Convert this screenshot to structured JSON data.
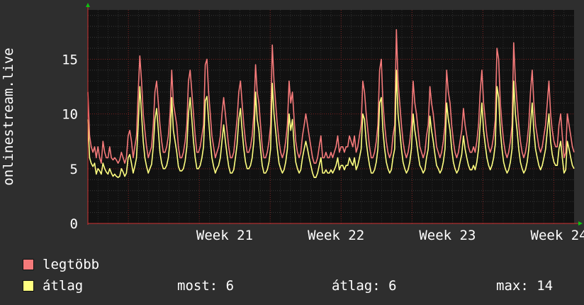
{
  "chart_data": {
    "type": "line",
    "ylabel": "onlinestream.live",
    "yticks": [
      0,
      5,
      10,
      15
    ],
    "ylim": [
      0,
      19.5
    ],
    "x_tick_labels": [
      "Week 21",
      "Week 22",
      "Week 23",
      "Week 24"
    ],
    "x_tick_days": [
      13.5,
      24.5,
      35.5,
      46.5
    ],
    "xlim_days": [
      0,
      48
    ],
    "grid": true,
    "colors": {
      "background": "#2e2e2e",
      "plot_bg": "#111111",
      "max": "#f57a7a",
      "avg": "#ffff80",
      "axis": "#d03030",
      "arrow": "#10c010"
    },
    "series": [
      {
        "name": "legtöbb",
        "color": "#f57a7a",
        "values": [
          12,
          8,
          7,
          6.5,
          7,
          6,
          7,
          6,
          5.5,
          7.5,
          6.5,
          6,
          6,
          7,
          6,
          5.8,
          6,
          5.8,
          5.5,
          5.8,
          6.5,
          6,
          5.5,
          6,
          8,
          8.5,
          7.5,
          6,
          7,
          8,
          12,
          15.3,
          13,
          10,
          8.5,
          7,
          6,
          6.5,
          7,
          9,
          12,
          13,
          11,
          9,
          7.5,
          6.5,
          6.5,
          7,
          8,
          10,
          14,
          11,
          10,
          9,
          7,
          6,
          6,
          6.5,
          7.5,
          9,
          13,
          14,
          12,
          10,
          8,
          6.5,
          6.5,
          7,
          8,
          9,
          14.5,
          15,
          12,
          10,
          8,
          7,
          6,
          6.5,
          7,
          8,
          10,
          11.5,
          10,
          8.5,
          7,
          6,
          6,
          6.5,
          8,
          9.5,
          12,
          13,
          11,
          9,
          7.5,
          6.5,
          6.5,
          7,
          8,
          10,
          14.5,
          12,
          11,
          9,
          7,
          6,
          6,
          6.5,
          7.5,
          9,
          16.3,
          13,
          11,
          9,
          7.5,
          6.5,
          6,
          6.5,
          7.5,
          9,
          13,
          11,
          12,
          9.5,
          7.5,
          6.5,
          6,
          6.5,
          8,
          9,
          10,
          9,
          8,
          7,
          6,
          5.5,
          5.5,
          6,
          7,
          8,
          6,
          6,
          6.5,
          6,
          6,
          6.5,
          6,
          6.5,
          7,
          8,
          6.5,
          7,
          7,
          6.5,
          7,
          7,
          8,
          7.5,
          7,
          8,
          6.5,
          7,
          8,
          9,
          13,
          12,
          10,
          8.5,
          7,
          6,
          6,
          6.5,
          7.5,
          9,
          14,
          15,
          11,
          9,
          7.5,
          6.5,
          6,
          6.5,
          8,
          9,
          17.7,
          13,
          11,
          9,
          7.5,
          6.5,
          6,
          6.5,
          7.5,
          9,
          13,
          11,
          10,
          8.5,
          7,
          6.5,
          6,
          6.5,
          8,
          9,
          12.5,
          11,
          10,
          8.5,
          7,
          6.5,
          6,
          6.5,
          7.5,
          9,
          14,
          12,
          11,
          9,
          7.5,
          6.5,
          6,
          6.5,
          7.5,
          8.5,
          10.5,
          9,
          8,
          7,
          6.5,
          6.5,
          7,
          6.5,
          7.5,
          9,
          12,
          14,
          11,
          9.5,
          8,
          7,
          6.5,
          7,
          8,
          9.5,
          16,
          15,
          11,
          9,
          7.5,
          6.5,
          6,
          6.5,
          7.5,
          9,
          16.5,
          13,
          11,
          9,
          7.5,
          6.5,
          6,
          6.5,
          7.5,
          9,
          12,
          14,
          11,
          9,
          8,
          7,
          6.5,
          7,
          8,
          9,
          11,
          13,
          10,
          8.5,
          7.5,
          7,
          7,
          9,
          10,
          8,
          6,
          6.5,
          10,
          9,
          8,
          7,
          6.5
        ]
      },
      {
        "name": "átlag",
        "color": "#ffff80",
        "values": [
          9.5,
          6,
          5.5,
          5.2,
          5.5,
          4.5,
          5,
          4.8,
          4.5,
          5.5,
          5,
          4.7,
          4.5,
          5,
          4.6,
          4.3,
          4.5,
          4.3,
          4.2,
          4.3,
          5,
          4.7,
          4.3,
          4.6,
          6,
          6.3,
          5.5,
          4.6,
          5.2,
          6,
          9,
          12.5,
          10,
          7.5,
          6,
          5.2,
          4.6,
          5,
          5.4,
          7,
          9.5,
          10.5,
          8.5,
          6.5,
          5.5,
          5,
          5,
          5.3,
          6,
          7.5,
          11.5,
          8.5,
          7.5,
          6.5,
          5.2,
          4.8,
          4.8,
          5,
          5.7,
          7,
          10,
          11.5,
          9.5,
          7.5,
          6,
          5,
          5,
          5.3,
          6,
          7,
          11.2,
          11.6,
          9.5,
          7.5,
          6,
          5.2,
          4.6,
          5,
          5.3,
          6,
          7.5,
          9,
          7.5,
          6.3,
          5.2,
          4.6,
          4.6,
          4.9,
          6,
          7.2,
          9.5,
          10.5,
          8.5,
          6.8,
          5.6,
          5,
          5,
          5.3,
          6,
          7.5,
          12,
          9.5,
          8.5,
          6.8,
          5.3,
          4.6,
          4.6,
          4.9,
          5.6,
          6.8,
          12.8,
          10,
          8.5,
          6.8,
          5.5,
          5,
          4.6,
          4.9,
          5.6,
          6.8,
          10,
          8.5,
          9.5,
          7.2,
          5.6,
          5,
          4.6,
          4.9,
          6,
          6.8,
          7.5,
          6.8,
          6,
          5.3,
          4.6,
          4.2,
          4.2,
          4.6,
          5.3,
          6,
          4.6,
          4.6,
          4.9,
          4.6,
          4.6,
          4.9,
          4.6,
          4.9,
          5.3,
          6,
          4.9,
          5.3,
          5.3,
          4.9,
          5.3,
          5.3,
          6,
          5.6,
          5.3,
          6,
          4.9,
          5.3,
          6,
          6.8,
          10,
          9.5,
          7.5,
          6.3,
          5.3,
          4.6,
          4.6,
          4.9,
          5.6,
          6.8,
          11,
          11.5,
          8.5,
          6.8,
          5.6,
          5,
          4.6,
          4.9,
          6,
          6.8,
          14,
          10,
          8.5,
          6.8,
          5.6,
          5,
          4.6,
          4.9,
          5.6,
          6.8,
          10,
          8.5,
          7.5,
          6.3,
          5.3,
          5,
          4.6,
          4.9,
          6,
          6.8,
          9.8,
          8.5,
          7.5,
          6.3,
          5.3,
          5,
          4.6,
          4.9,
          5.6,
          6.8,
          11,
          9.5,
          8.5,
          6.8,
          5.6,
          5,
          4.6,
          4.9,
          5.6,
          6.3,
          8,
          6.8,
          6,
          5.3,
          4.9,
          4.9,
          5.3,
          4.9,
          5.6,
          6.8,
          9,
          11,
          8.5,
          7.2,
          6,
          5.3,
          4.9,
          5.3,
          6,
          7.2,
          12.5,
          11.5,
          8.5,
          6.8,
          5.6,
          5,
          4.6,
          4.9,
          5.6,
          6.8,
          13,
          10,
          8.5,
          6.8,
          5.6,
          5,
          4.6,
          4.9,
          5.6,
          6.8,
          9,
          11,
          8.5,
          6.8,
          6,
          5.3,
          4.9,
          5.3,
          6,
          6.8,
          8.5,
          10,
          7.5,
          6.3,
          5.6,
          5.3,
          5.3,
          6.8,
          7.5,
          6,
          4.6,
          4.9,
          7.5,
          6.8,
          6,
          5.3,
          5
        ]
      }
    ]
  },
  "legend": [
    {
      "label": "legtöbb",
      "color": "#f57a7a"
    },
    {
      "label": "átlag",
      "color": "#ffff80"
    }
  ],
  "stats": {
    "current_label": "most:",
    "current_value": "6",
    "average_label": "átlag:",
    "average_value": "6",
    "max_label": "max:",
    "max_value": "14"
  }
}
